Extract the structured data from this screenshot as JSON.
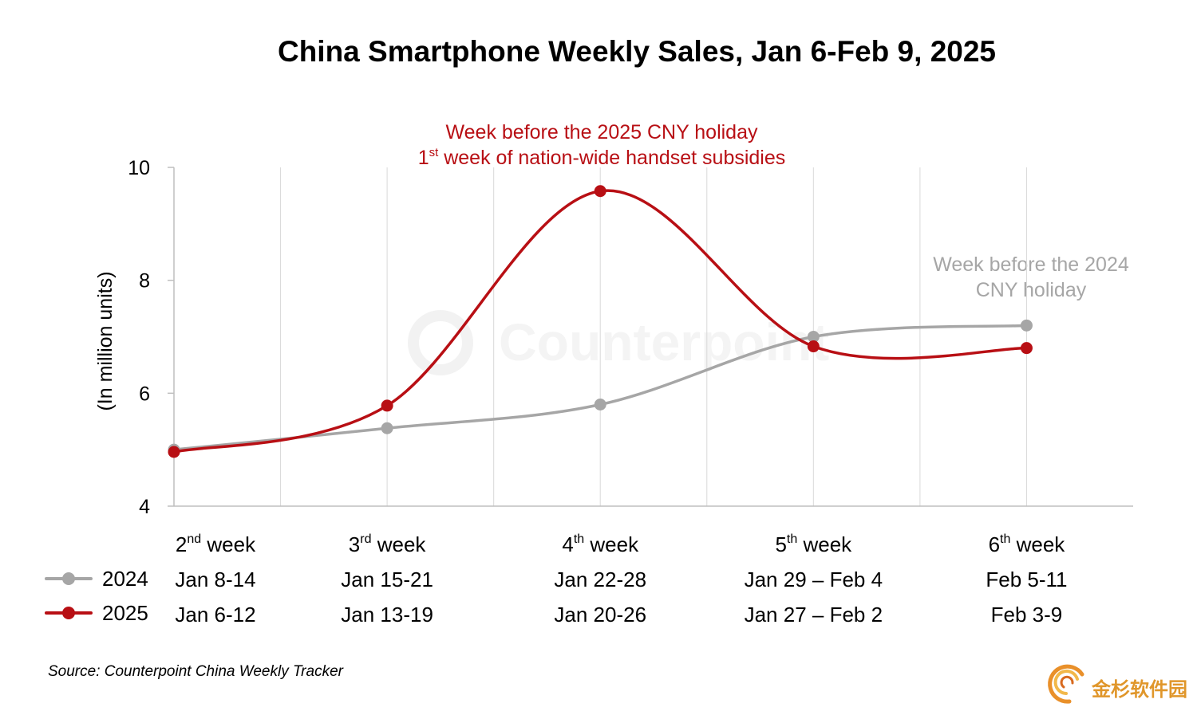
{
  "chart_data": {
    "type": "line",
    "title": "China Smartphone Weekly Sales, Jan 6-Feb 9, 2025",
    "ylabel": "(In million units)",
    "ylim": [
      4,
      10
    ],
    "yticks": [
      4,
      6,
      8,
      10
    ],
    "grid": "vertical",
    "smooth": true,
    "categories": [
      {
        "week_num": "2",
        "week_sup": "nd",
        "week_rest": " week",
        "dates_2024": "Jan 8-14",
        "dates_2025": "Jan 6-12"
      },
      {
        "week_num": "3",
        "week_sup": "rd",
        "week_rest": " week",
        "dates_2024": "Jan 15-21",
        "dates_2025": "Jan 13-19"
      },
      {
        "week_num": "4",
        "week_sup": "th",
        "week_rest": " week",
        "dates_2024": "Jan 22-28",
        "dates_2025": "Jan 20-26"
      },
      {
        "week_num": "5",
        "week_sup": "th",
        "week_rest": " week",
        "dates_2024": "Jan 29 – Feb 4",
        "dates_2025": "Jan 27 – Feb 2"
      },
      {
        "week_num": "6",
        "week_sup": "th",
        "week_rest": " week",
        "dates_2024": "Feb 5-11",
        "dates_2025": "Feb 3-9"
      }
    ],
    "series": [
      {
        "name": "2024",
        "color": "#a6a6a6",
        "values": [
          5.0,
          5.38,
          5.8,
          7.0,
          7.2
        ]
      },
      {
        "name": "2025",
        "color": "#b80f14",
        "values": [
          4.96,
          5.78,
          9.58,
          6.83,
          6.8
        ]
      }
    ],
    "legend_position": "left, aligned with date rows",
    "annotations": [
      {
        "id": "red",
        "series": "2025",
        "near_category": 2,
        "line1": "Week before the 2025 CNY holiday",
        "line2_num": "1",
        "line2_sup": "st",
        "line2_rest": " week of nation-wide handset subsidies"
      },
      {
        "id": "gray",
        "series": "2024",
        "near_category": 4,
        "line1": "Week before the 2024",
        "line2": "CNY holiday"
      }
    ]
  },
  "source": "Source: Counterpoint China Weekly Tracker",
  "watermark": "Counterpoint",
  "logo_text": "金杉软件园"
}
